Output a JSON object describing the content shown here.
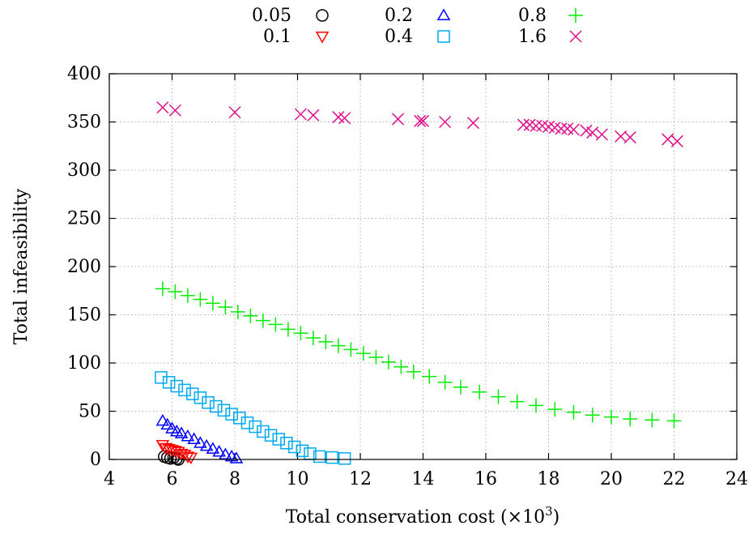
{
  "chart_data": {
    "type": "scatter",
    "xlabel": "Total conservation cost (×10",
    "xlabel_sup": "3",
    "xlabel_close": ")",
    "ylabel": "Total infeasibility",
    "xlim": [
      4,
      24
    ],
    "ylim": [
      0,
      400
    ],
    "xticks": [
      4,
      6,
      8,
      10,
      12,
      14,
      16,
      18,
      20,
      22,
      24
    ],
    "yticks": [
      0,
      50,
      100,
      150,
      200,
      250,
      300,
      350,
      400
    ],
    "grid": true,
    "legend_position": "top, outside",
    "series": [
      {
        "name": "0.05",
        "marker": "circle",
        "color": "#000000",
        "points": [
          [
            5.75,
            3
          ],
          [
            5.85,
            2
          ],
          [
            5.95,
            1
          ],
          [
            6.05,
            2
          ],
          [
            6.15,
            1
          ],
          [
            6.2,
            0
          ]
        ]
      },
      {
        "name": "0.1",
        "marker": "triangle-down",
        "color": "#ff0000",
        "points": [
          [
            5.7,
            15
          ],
          [
            5.8,
            12
          ],
          [
            5.9,
            11
          ],
          [
            6.0,
            10
          ],
          [
            6.1,
            9
          ],
          [
            6.2,
            8
          ],
          [
            6.3,
            6
          ],
          [
            6.4,
            5
          ],
          [
            6.5,
            3
          ],
          [
            6.6,
            2
          ]
        ]
      },
      {
        "name": "0.2",
        "marker": "triangle-up",
        "color": "#0000ff",
        "points": [
          [
            5.7,
            40
          ],
          [
            5.85,
            36
          ],
          [
            6.0,
            32
          ],
          [
            6.15,
            29
          ],
          [
            6.3,
            27
          ],
          [
            6.5,
            24
          ],
          [
            6.7,
            21
          ],
          [
            6.9,
            17
          ],
          [
            7.1,
            14
          ],
          [
            7.3,
            11
          ],
          [
            7.5,
            8
          ],
          [
            7.7,
            5
          ],
          [
            7.9,
            3
          ],
          [
            8.05,
            1
          ]
        ]
      },
      {
        "name": "0.4",
        "marker": "square",
        "color": "#00aaee",
        "points": [
          [
            5.65,
            85
          ],
          [
            5.9,
            80
          ],
          [
            6.15,
            76
          ],
          [
            6.4,
            72
          ],
          [
            6.65,
            68
          ],
          [
            6.9,
            64
          ],
          [
            7.15,
            59
          ],
          [
            7.4,
            55
          ],
          [
            7.65,
            51
          ],
          [
            7.9,
            47
          ],
          [
            8.15,
            43
          ],
          [
            8.4,
            38
          ],
          [
            8.65,
            34
          ],
          [
            8.9,
            29
          ],
          [
            9.15,
            25
          ],
          [
            9.4,
            21
          ],
          [
            9.65,
            17
          ],
          [
            9.9,
            13
          ],
          [
            10.15,
            9
          ],
          [
            10.4,
            6
          ],
          [
            10.7,
            3
          ],
          [
            11.1,
            2
          ],
          [
            11.5,
            1
          ]
        ]
      },
      {
        "name": "0.8",
        "marker": "plus",
        "color": "#00ee00",
        "points": [
          [
            5.7,
            177
          ],
          [
            6.1,
            174
          ],
          [
            6.5,
            170
          ],
          [
            6.9,
            166
          ],
          [
            7.3,
            162
          ],
          [
            7.7,
            158
          ],
          [
            8.1,
            153
          ],
          [
            8.5,
            149
          ],
          [
            8.9,
            144
          ],
          [
            9.3,
            140
          ],
          [
            9.7,
            135
          ],
          [
            10.1,
            131
          ],
          [
            10.5,
            126
          ],
          [
            10.9,
            122
          ],
          [
            11.3,
            118
          ],
          [
            11.7,
            114
          ],
          [
            12.1,
            110
          ],
          [
            12.5,
            106
          ],
          [
            12.9,
            101
          ],
          [
            13.3,
            96
          ],
          [
            13.7,
            91
          ],
          [
            14.2,
            86
          ],
          [
            14.7,
            80
          ],
          [
            15.2,
            75
          ],
          [
            15.8,
            70
          ],
          [
            16.4,
            65
          ],
          [
            17.0,
            60
          ],
          [
            17.6,
            56
          ],
          [
            18.2,
            52
          ],
          [
            18.8,
            49
          ],
          [
            19.4,
            46
          ],
          [
            20.0,
            44
          ],
          [
            20.6,
            42
          ],
          [
            21.3,
            41
          ],
          [
            22.0,
            40
          ]
        ]
      },
      {
        "name": "1.6",
        "marker": "cross",
        "color": "#e0108c",
        "points": [
          [
            5.7,
            365
          ],
          [
            6.1,
            362
          ],
          [
            8.0,
            360
          ],
          [
            10.1,
            358
          ],
          [
            10.5,
            357
          ],
          [
            11.3,
            355
          ],
          [
            11.5,
            354
          ],
          [
            13.2,
            353
          ],
          [
            13.9,
            351
          ],
          [
            14.0,
            351
          ],
          [
            14.7,
            350
          ],
          [
            15.6,
            349
          ],
          [
            17.2,
            347
          ],
          [
            17.4,
            347
          ],
          [
            17.6,
            346
          ],
          [
            17.8,
            346
          ],
          [
            18.0,
            345
          ],
          [
            18.2,
            344
          ],
          [
            18.4,
            343
          ],
          [
            18.6,
            343
          ],
          [
            18.8,
            342
          ],
          [
            19.2,
            341
          ],
          [
            19.4,
            339
          ],
          [
            19.7,
            337
          ],
          [
            20.3,
            335
          ],
          [
            20.6,
            334
          ],
          [
            21.8,
            332
          ],
          [
            22.1,
            330
          ]
        ]
      }
    ]
  }
}
